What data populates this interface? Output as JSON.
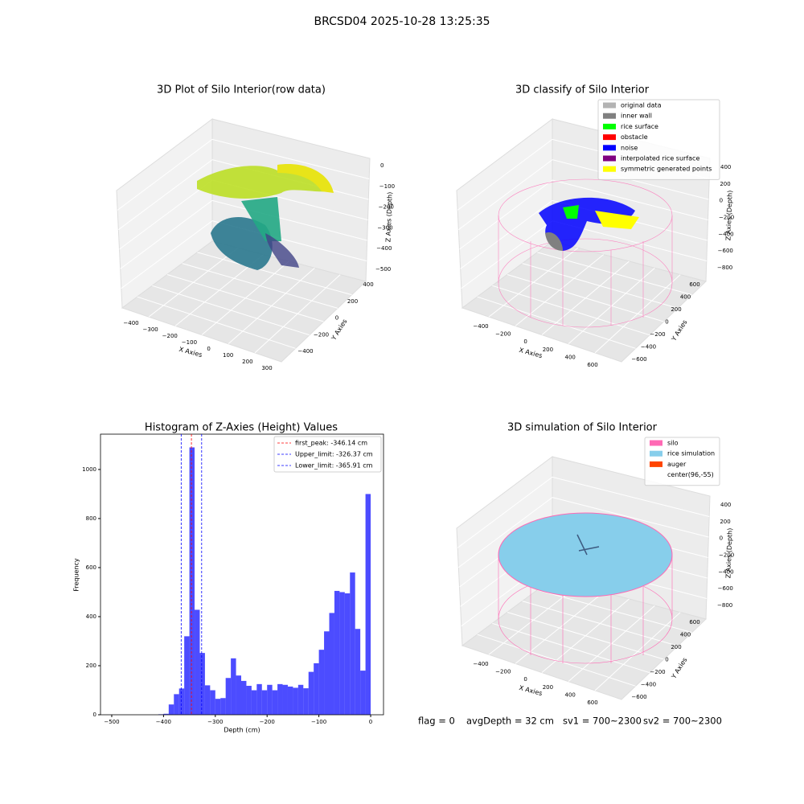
{
  "suptitle": "BRCSD04 2025-10-28 13:25:35",
  "chart_data": [
    {
      "type": "scatter3d",
      "title": "3D Plot of Silo Interior(row data)",
      "xlabel": "X Axies",
      "ylabel": "Y Axies",
      "zlabel": "Z Axies (Depth)",
      "xticks": [
        {
          "value": -400,
          "label": "−400"
        },
        {
          "value": -300,
          "label": "−300"
        },
        {
          "value": -200,
          "label": "−200"
        },
        {
          "value": -100,
          "label": "−100"
        },
        0,
        100,
        200,
        300
      ],
      "yticks": [
        {
          "value": -400,
          "label": "−400"
        },
        {
          "value": -200,
          "label": "−200"
        },
        0,
        200,
        400
      ],
      "zticks": [
        0,
        {
          "value": -100,
          "label": "−100"
        },
        {
          "value": -200,
          "label": "−200"
        },
        {
          "value": -300,
          "label": "−300"
        },
        {
          "value": -400,
          "label": "−400"
        },
        {
          "value": -500,
          "label": "−500"
        }
      ]
    },
    {
      "type": "scatter3d",
      "title": "3D classify of Silo Interior",
      "xlabel": "X Axies",
      "ylabel": "Y Axies",
      "zlabel": "Z Axies (Depth)",
      "xticks": [
        {
          "value": -400,
          "label": "−400"
        },
        {
          "value": -200,
          "label": "−200"
        },
        0,
        200,
        400,
        600
      ],
      "yticks": [
        {
          "value": -600,
          "label": "−600"
        },
        {
          "value": -400,
          "label": "−400"
        },
        {
          "value": -200,
          "label": "−200"
        },
        0,
        200,
        400,
        600
      ],
      "zticks": [
        400,
        200,
        0,
        {
          "value": -200,
          "label": "−200"
        },
        {
          "value": -400,
          "label": "−400"
        },
        {
          "value": -600,
          "label": "−600"
        },
        {
          "value": -800,
          "label": "−800"
        }
      ],
      "legend": [
        {
          "name": "original data",
          "color": "#b3b3b3"
        },
        {
          "name": "inner wall",
          "color": "#808080"
        },
        {
          "name": "rice surface",
          "color": "#00ff00"
        },
        {
          "name": "obstacle",
          "color": "#ff0000"
        },
        {
          "name": "noise",
          "color": "#0000ff"
        },
        {
          "name": "interpolated rice surface",
          "color": "#800080"
        },
        {
          "name": "symmetric generated points",
          "color": "#ffff00"
        }
      ]
    },
    {
      "type": "histogram",
      "title": "Histogram of Z-Axies (Height) Values",
      "xlabel": "Depth (cm)",
      "ylabel": "Frequency",
      "color": "#0000ff",
      "alpha": 0.7,
      "bins": [
        -410,
        -400,
        -390,
        -380,
        -370,
        -360,
        -350,
        -340,
        -330,
        -320,
        -310,
        -300,
        -290,
        -280,
        -270,
        -260,
        -250,
        -240,
        -230,
        -220,
        -210,
        -200,
        -190,
        -180,
        -170,
        -160,
        -150,
        -140,
        -130,
        -120,
        -110,
        -100,
        -90,
        -80,
        -70,
        -60,
        -50,
        -40,
        -30,
        -20,
        -10,
        0
      ],
      "values": [
        2,
        4,
        42,
        84,
        107,
        320,
        1090,
        428,
        252,
        120,
        100,
        65,
        68,
        150,
        230,
        160,
        138,
        118,
        100,
        125,
        100,
        122,
        100,
        125,
        122,
        115,
        110,
        122,
        108,
        175,
        210,
        265,
        340,
        415,
        505,
        500,
        495,
        580,
        350,
        180,
        900
      ],
      "xlim": [
        -521.7,
        24.8
      ],
      "ylim": [
        0,
        1144
      ],
      "xticks": [
        {
          "value": -500,
          "label": "−500"
        },
        {
          "value": -400,
          "label": "−400"
        },
        {
          "value": -300,
          "label": "−300"
        },
        {
          "value": -200,
          "label": "−200"
        },
        {
          "value": -100,
          "label": "−100"
        },
        0
      ],
      "yticks": [
        0,
        200,
        400,
        600,
        800,
        1000
      ],
      "vlines": [
        {
          "name": "first_peak: -346.14 cm",
          "value": -346.14,
          "color": "#ff0000"
        },
        {
          "name": "Upper_limit: -326.37 cm",
          "value": -326.37,
          "color": "#0000ff"
        },
        {
          "name": "Lower_limit: -365.91 cm",
          "value": -365.91,
          "color": "#0000ff"
        }
      ]
    },
    {
      "type": "surface3d",
      "title": "3D simulation of Silo Interior",
      "xlabel": "X Axies",
      "ylabel": "Y Axies",
      "zlabel": "Z Axies (Depth)",
      "xticks": [
        {
          "value": -400,
          "label": "−400"
        },
        {
          "value": -200,
          "label": "−200"
        },
        0,
        200,
        400,
        600
      ],
      "yticks": [
        {
          "value": -600,
          "label": "−600"
        },
        {
          "value": -400,
          "label": "−400"
        },
        {
          "value": -200,
          "label": "−200"
        },
        0,
        200,
        400,
        600
      ],
      "zticks": [
        400,
        200,
        0,
        {
          "value": -200,
          "label": "−200"
        },
        {
          "value": -400,
          "label": "−400"
        },
        {
          "value": -600,
          "label": "−600"
        },
        {
          "value": -800,
          "label": "−800"
        }
      ],
      "legend": [
        {
          "name": "silo",
          "color": "#ff69b4"
        },
        {
          "name": "rice simulation",
          "color": "#87ceeb"
        },
        {
          "name": "auger",
          "color": "#ff4500"
        },
        {
          "name": "center(96,-55)",
          "color": "#ffffff"
        }
      ],
      "annotations": [
        "flag = 0",
        "avgDepth = 32 cm",
        "sv1 = 700~2300",
        "sv2 = 700~2300"
      ]
    }
  ]
}
